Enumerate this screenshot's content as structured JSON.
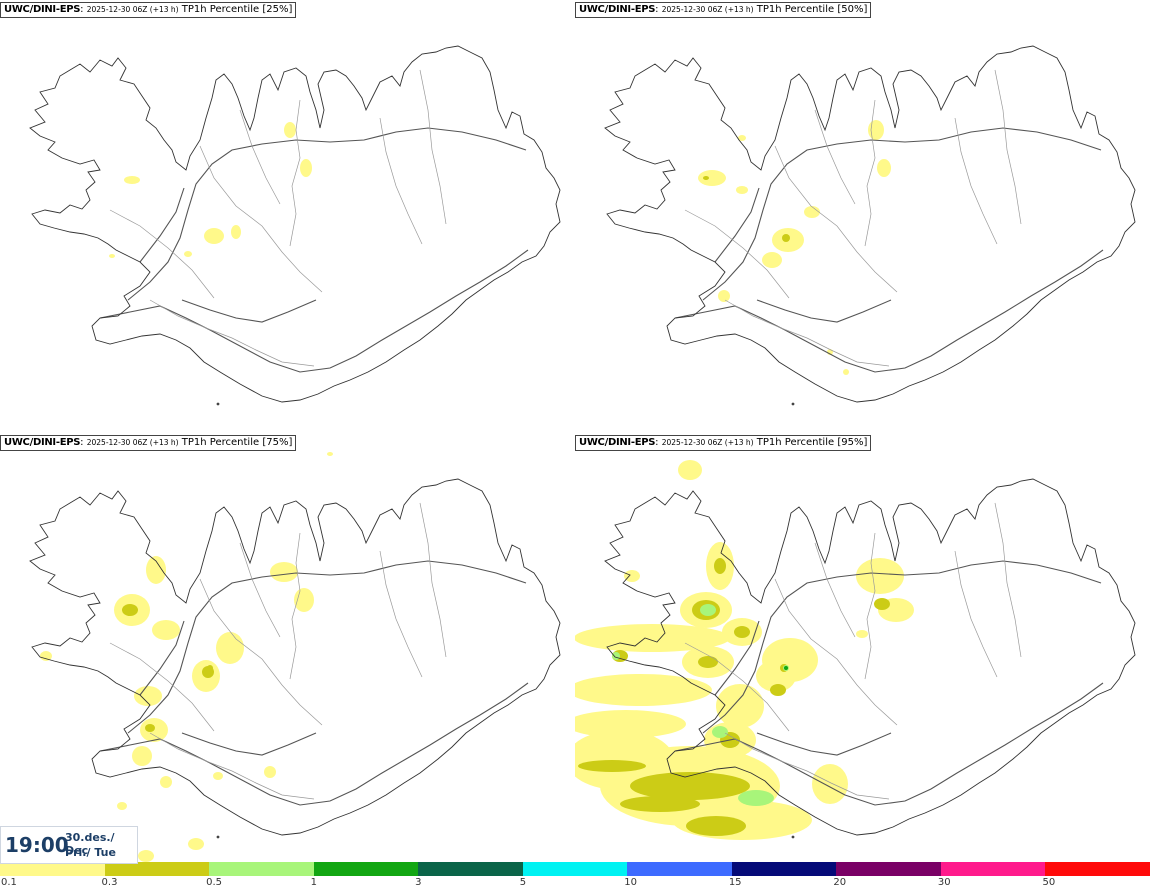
{
  "panels": [
    {
      "source": "UWC/DINI-EPS",
      "run": "2025-12-30 06Z (+13 h)",
      "field": "TP1h Percentile [25%]"
    },
    {
      "source": "UWC/DINI-EPS",
      "run": "2025-12-30 06Z (+13 h)",
      "field": "TP1h Percentile [50%]"
    },
    {
      "source": "UWC/DINI-EPS",
      "run": "2025-12-30 06Z (+13 h)",
      "field": "TP1h Percentile [75%]"
    },
    {
      "source": "UWC/DINI-EPS",
      "run": "2025-12-30 06Z (+13 h)",
      "field": "TP1h Percentile [95%]"
    }
  ],
  "valid_time": {
    "time": "19:00",
    "date": "30.des./ Dec",
    "weekday": "Þri./ Tue"
  },
  "legend": {
    "labels": [
      "0.1",
      "0.3",
      "0.5",
      "1",
      "3",
      "5",
      "10",
      "15",
      "20",
      "30",
      "50"
    ],
    "colors": [
      "#fff98a",
      "#cccc16",
      "#a8f57a",
      "#12a612",
      "#0a6448",
      "#00f2f2",
      "#3d6bff",
      "#050a78",
      "#7a0066",
      "#ff1a8c",
      "#ff0a0a"
    ]
  }
}
